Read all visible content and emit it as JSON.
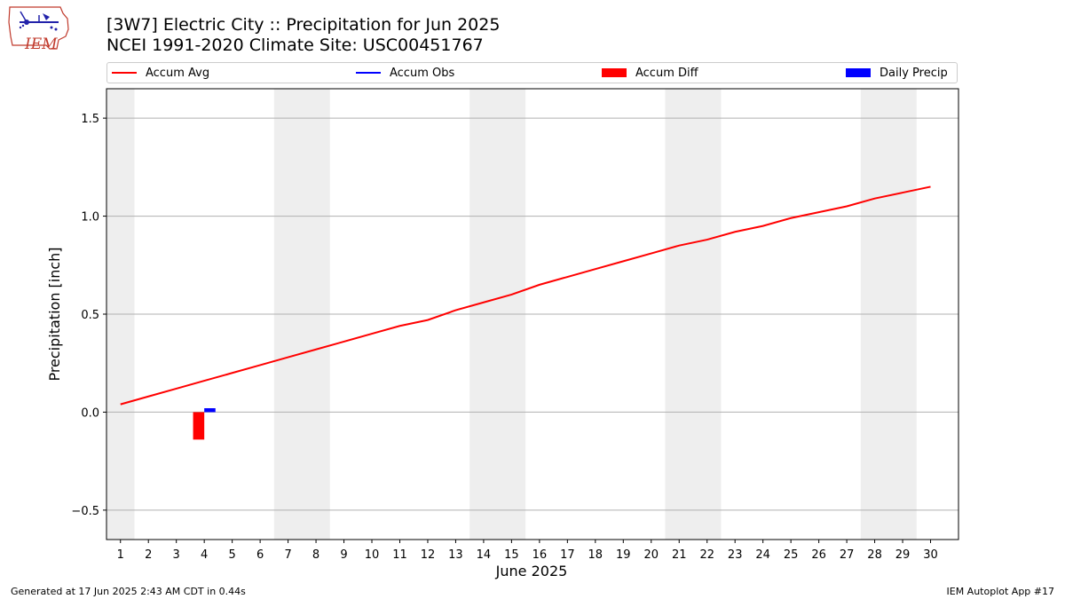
{
  "header": {
    "title_line1": "[3W7] Electric City :: Precipitation for Jun 2025",
    "title_line2": "NCEI 1991-2020 Climate Site: USC00451767"
  },
  "logo": {
    "text": "IEM",
    "icon": "iem-iowa-logo-icon"
  },
  "legend": {
    "items": [
      {
        "label": "Accum Avg",
        "color": "#ff0000",
        "kind": "line"
      },
      {
        "label": "Accum Obs",
        "color": "#0000ff",
        "kind": "line"
      },
      {
        "label": "Accum Diff",
        "color": "#ff0000",
        "kind": "box"
      },
      {
        "label": "Daily Precip",
        "color": "#0000ff",
        "kind": "box"
      }
    ],
    "placement": "top"
  },
  "footer": {
    "left": "Generated at 17 Jun 2025 2:43 AM CDT in 0.44s",
    "right": "IEM Autoplot App #17"
  },
  "chart_data": {
    "type": "line",
    "xlabel": "June 2025",
    "ylabel": "Precipitation [inch]",
    "xlim": [
      0.5,
      31.0
    ],
    "ylim": [
      -0.65,
      1.65
    ],
    "x_ticks": [
      1,
      2,
      3,
      4,
      5,
      6,
      7,
      8,
      9,
      10,
      11,
      12,
      13,
      14,
      15,
      16,
      17,
      18,
      19,
      20,
      21,
      22,
      23,
      24,
      25,
      26,
      27,
      28,
      29,
      30
    ],
    "y_ticks": [
      -0.5,
      0.0,
      0.5,
      1.0,
      1.5
    ],
    "y_tick_labels": [
      "−0.5",
      "0.0",
      "0.5",
      "1.0",
      "1.5"
    ],
    "grid": "y",
    "weekend_shading": [
      [
        0.5,
        1.5
      ],
      [
        6.5,
        8.5
      ],
      [
        13.5,
        15.5
      ],
      [
        20.5,
        22.5
      ],
      [
        27.5,
        29.5
      ]
    ],
    "series": [
      {
        "name": "Accum Avg",
        "kind": "line",
        "color": "#ff0000",
        "x": [
          1,
          2,
          3,
          4,
          5,
          6,
          7,
          8,
          9,
          10,
          11,
          12,
          13,
          14,
          15,
          16,
          17,
          18,
          19,
          20,
          21,
          22,
          23,
          24,
          25,
          26,
          27,
          28,
          29,
          30
        ],
        "values": [
          0.04,
          0.08,
          0.12,
          0.16,
          0.2,
          0.24,
          0.28,
          0.32,
          0.36,
          0.4,
          0.44,
          0.47,
          0.52,
          0.56,
          0.6,
          0.65,
          0.69,
          0.73,
          0.77,
          0.81,
          0.85,
          0.88,
          0.92,
          0.95,
          0.99,
          1.02,
          1.05,
          1.09,
          1.12,
          1.15
        ]
      },
      {
        "name": "Accum Obs",
        "kind": "line",
        "color": "#0000ff",
        "x": [],
        "values": []
      },
      {
        "name": "Accum Diff",
        "kind": "bar",
        "color": "#ff0000",
        "offset": -0.2,
        "x": [
          4
        ],
        "values": [
          -0.14
        ]
      },
      {
        "name": "Daily Precip",
        "kind": "bar",
        "color": "#0000ff",
        "offset": 0.2,
        "x": [
          4
        ],
        "values": [
          0.02
        ]
      }
    ]
  }
}
